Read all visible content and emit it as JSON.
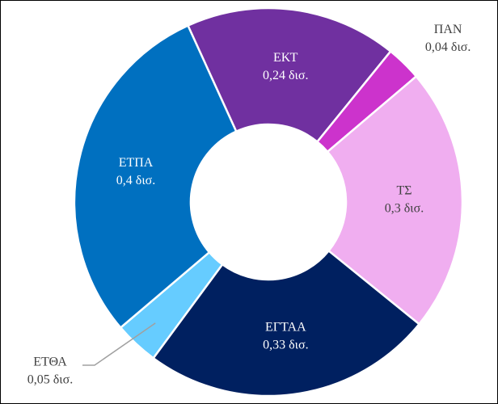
{
  "chart_data": {
    "type": "donut",
    "categories": [
      "ΕΚΤ",
      "ΠΑΝ",
      "ΤΣ",
      "ΕΓΤΑΑ",
      "ΕΤΘΑ",
      "ΕΤΠΑ"
    ],
    "values": [
      0.24,
      0.04,
      0.3,
      0.33,
      0.05,
      0.4
    ],
    "value_labels": [
      "0,24 δισ.",
      "0,04 δισ.",
      "0,3 δισ.",
      "0,33 δισ.",
      "0,05 δισ.",
      "0,4 δισ."
    ],
    "colors": [
      "#7030a0",
      "#cc33cc",
      "#f0aef0",
      "#002060",
      "#66ccff",
      "#0070c0"
    ]
  }
}
